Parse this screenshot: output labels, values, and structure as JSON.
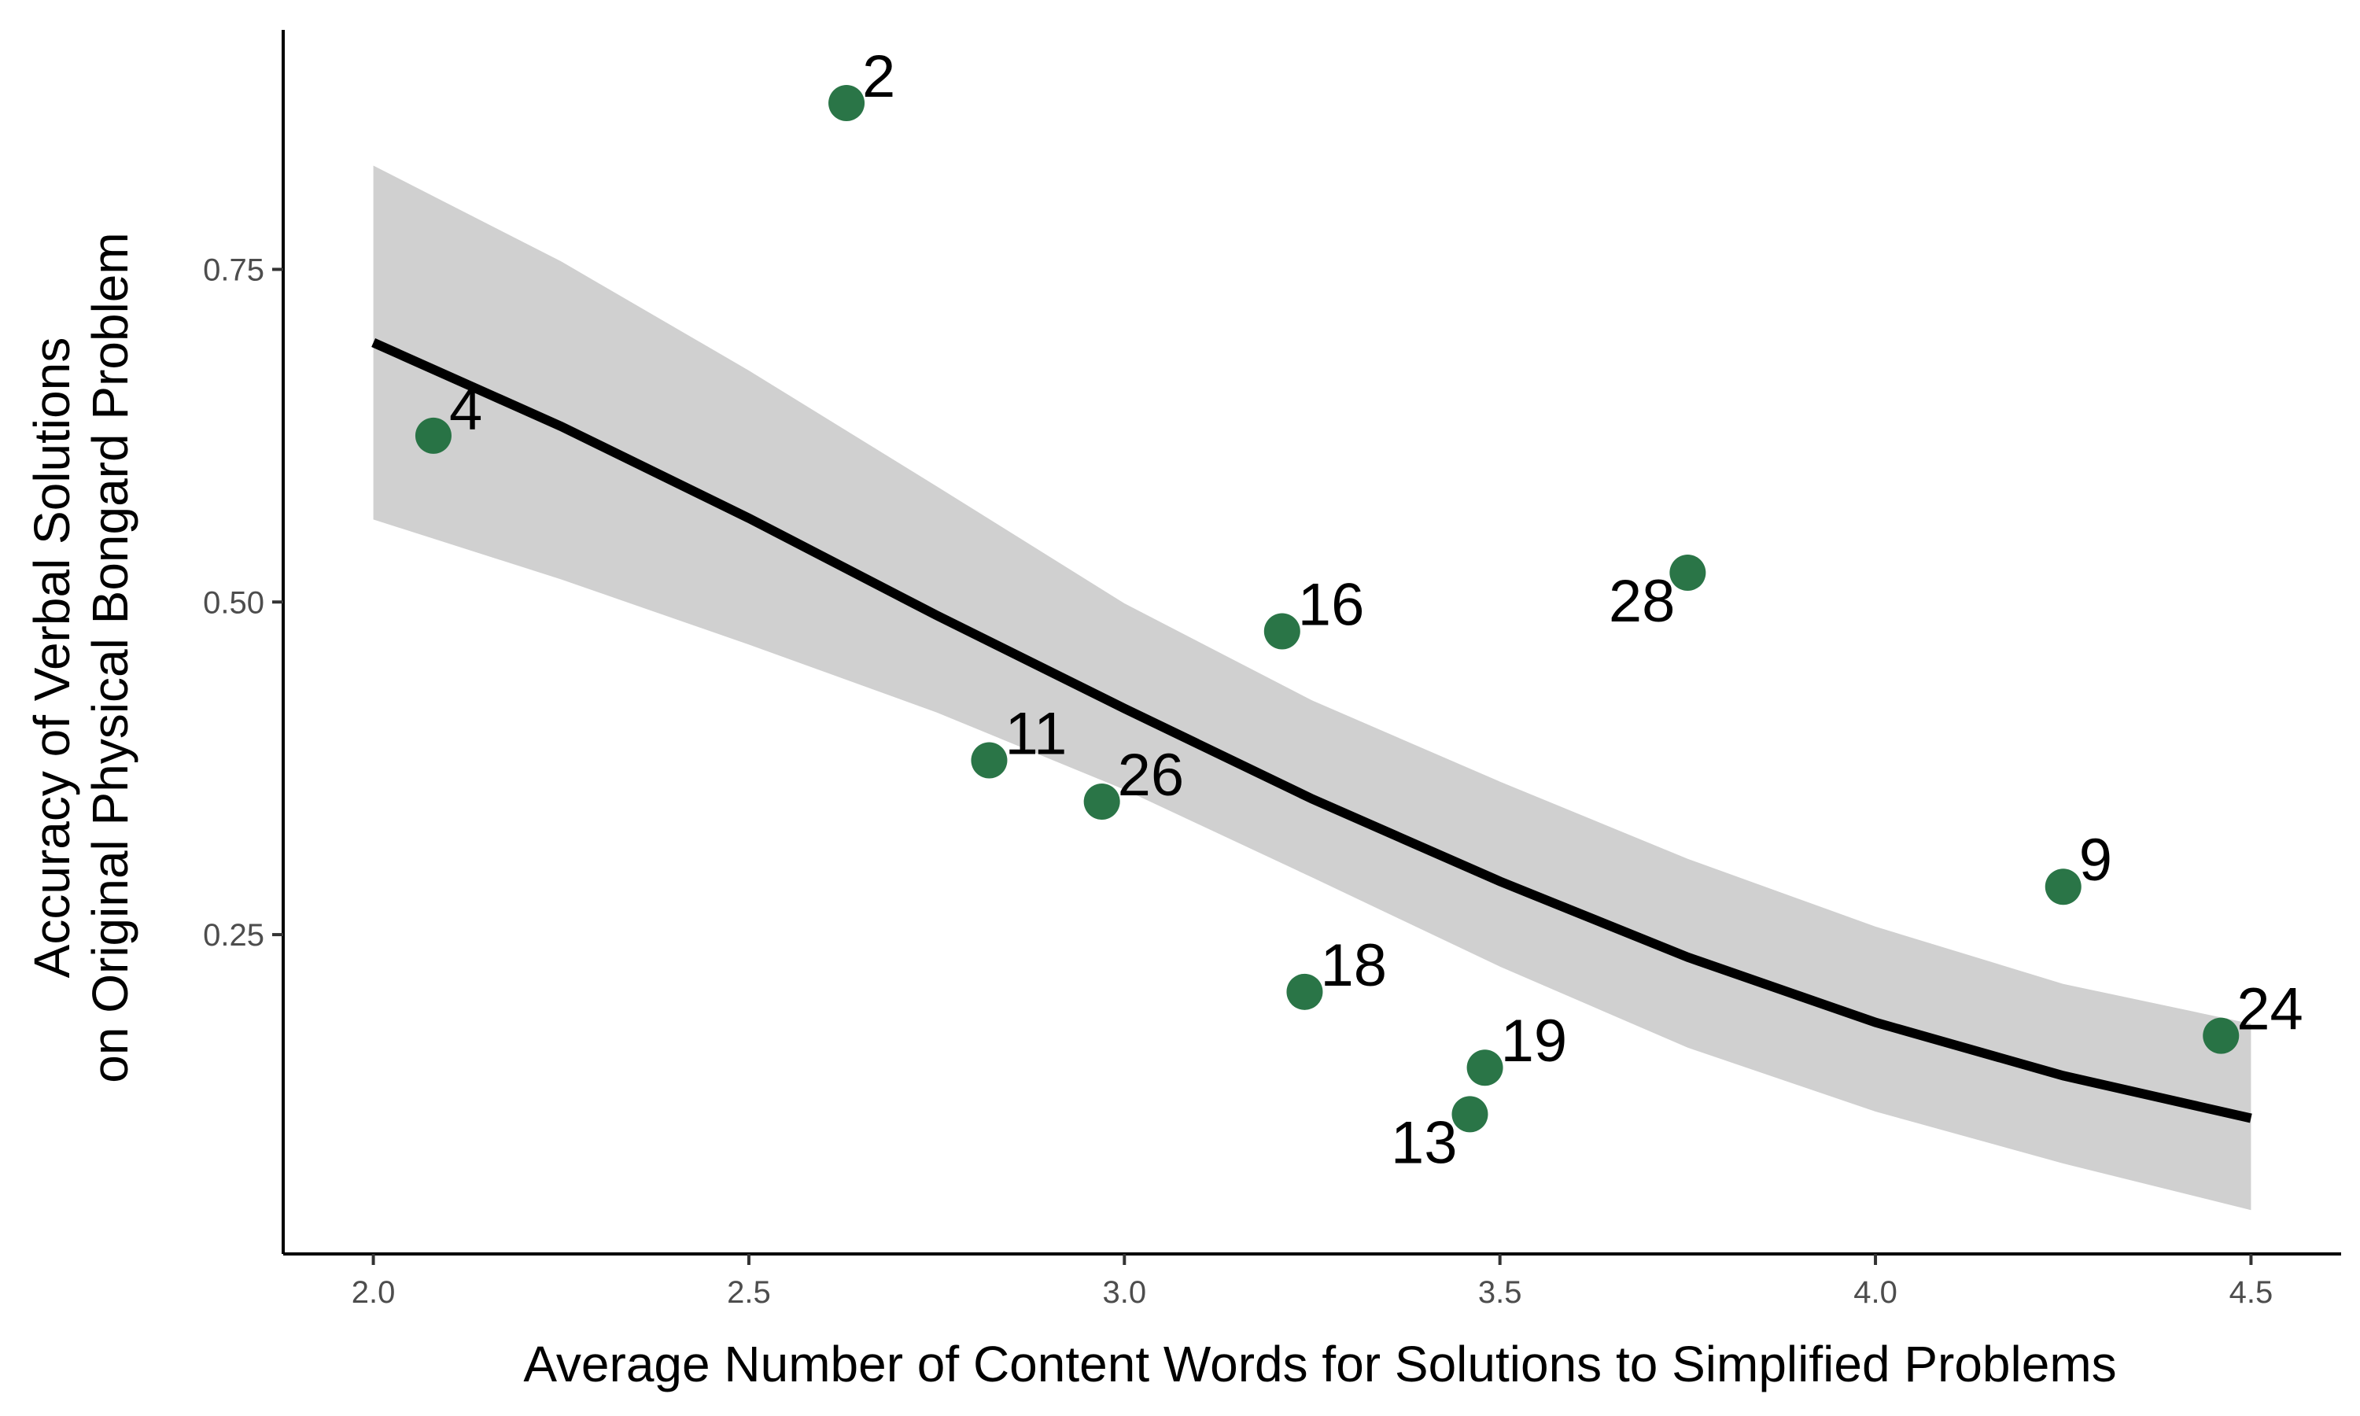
{
  "chart_data": {
    "type": "scatter",
    "title": "",
    "xlabel": "Average Number of Content Words for Solutions to Simplified Problems",
    "ylabel_lines": [
      "Accuracy of Verbal Solutions",
      "on Original Physical Bongard Problem"
    ],
    "xlim": [
      1.88,
      4.62
    ],
    "ylim": [
      0.01,
      0.93
    ],
    "x_ticks": [
      2.0,
      2.5,
      3.0,
      3.5,
      4.0,
      4.5
    ],
    "x_tick_labels": [
      "2.0",
      "2.5",
      "3.0",
      "3.5",
      "4.0",
      "4.5"
    ],
    "y_ticks": [
      0.25,
      0.5,
      0.75
    ],
    "y_tick_labels": [
      "0.25",
      "0.50",
      "0.75"
    ],
    "grid": false,
    "legend": "none",
    "point_color": "#1f6e3d",
    "points": [
      {
        "label": "2",
        "x": 2.63,
        "y": 0.875
      },
      {
        "label": "4",
        "x": 2.08,
        "y": 0.625
      },
      {
        "label": "16",
        "x": 3.21,
        "y": 0.478
      },
      {
        "label": "28",
        "x": 3.75,
        "y": 0.522
      },
      {
        "label": "11",
        "x": 2.82,
        "y": 0.381
      },
      {
        "label": "26",
        "x": 2.97,
        "y": 0.35
      },
      {
        "label": "9",
        "x": 4.25,
        "y": 0.286
      },
      {
        "label": "18",
        "x": 3.24,
        "y": 0.207
      },
      {
        "label": "24",
        "x": 4.46,
        "y": 0.174
      },
      {
        "label": "19",
        "x": 3.48,
        "y": 0.15
      },
      {
        "label": "13",
        "x": 3.46,
        "y": 0.115
      }
    ],
    "fit_line": {
      "color": "#000000",
      "band_color": "#d0d0d0",
      "x": [
        2.0,
        2.25,
        2.5,
        2.75,
        3.0,
        3.25,
        3.5,
        3.75,
        4.0,
        4.25,
        4.5
      ],
      "y": [
        0.695,
        0.632,
        0.563,
        0.49,
        0.42,
        0.352,
        0.29,
        0.233,
        0.184,
        0.144,
        0.112
      ],
      "lower": [
        0.562,
        0.517,
        0.468,
        0.417,
        0.359,
        0.293,
        0.226,
        0.165,
        0.117,
        0.078,
        0.043
      ],
      "upper": [
        0.828,
        0.756,
        0.674,
        0.587,
        0.499,
        0.426,
        0.365,
        0.307,
        0.256,
        0.213,
        0.183
      ]
    }
  }
}
